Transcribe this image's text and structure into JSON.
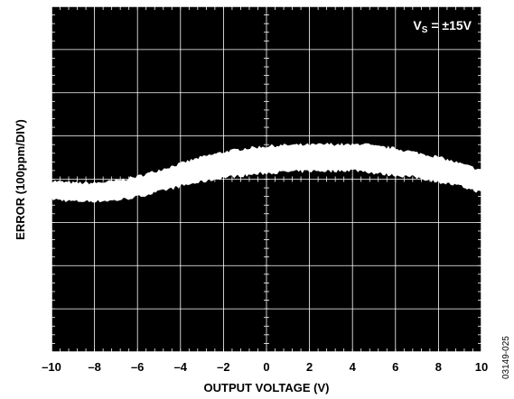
{
  "chart_data": {
    "type": "line",
    "title": "",
    "xlabel": "OUTPUT VOLTAGE (V)",
    "ylabel": "ERROR (100ppm/DIV)",
    "xlim": [
      -10,
      10
    ],
    "x_ticks": [
      "–10",
      "–8",
      "–6",
      "–4",
      "–2",
      "0",
      "2",
      "4",
      "6",
      "8",
      "10"
    ],
    "y_divisions": 8,
    "y_units_per_div": 100,
    "y_unit": "ppm",
    "grid": true,
    "background_color": "#000000",
    "trace_color": "#ffffff",
    "grid_color": "#ffffff",
    "annotation": {
      "main": "V",
      "subscript": "S",
      "rest": " = ±15V"
    },
    "figure_id": "03149-025",
    "series": [
      {
        "x": [
          -10,
          -9,
          -8,
          -7,
          -6,
          -5,
          -4,
          -3,
          -2,
          -1,
          0,
          1,
          2,
          3,
          4,
          4.5,
          5,
          6,
          7,
          8,
          9,
          10
        ],
        "y_upper": [
          -5,
          -10,
          -10,
          -5,
          5,
          20,
          35,
          50,
          62,
          70,
          75,
          78,
          78,
          80,
          78,
          82,
          75,
          70,
          60,
          50,
          35,
          20
        ],
        "y_lower": [
          -45,
          -50,
          -50,
          -48,
          -40,
          -28,
          -15,
          -5,
          5,
          10,
          15,
          18,
          20,
          20,
          22,
          20,
          15,
          10,
          5,
          -5,
          -15,
          -30
        ]
      }
    ]
  }
}
